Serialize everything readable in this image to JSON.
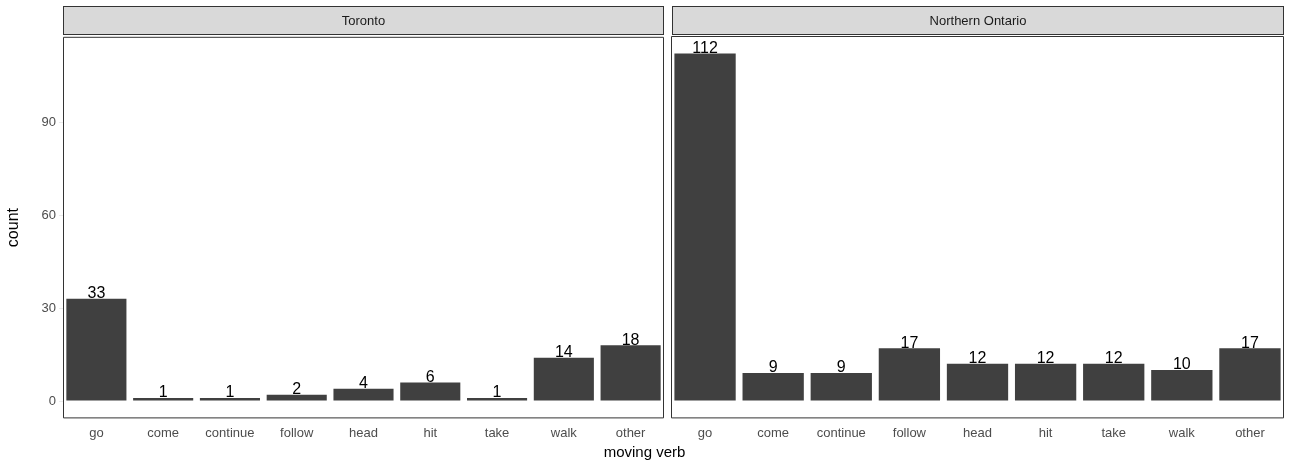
{
  "chart_data": [
    {
      "type": "bar",
      "title": "Toronto",
      "xlabel": "moving verb",
      "ylabel": "count",
      "categories": [
        "go",
        "come",
        "continue",
        "follow",
        "head",
        "hit",
        "take",
        "walk",
        "other"
      ],
      "values": [
        33,
        1,
        1,
        2,
        4,
        6,
        1,
        14,
        18
      ],
      "color": "#404040",
      "ylim": [
        -5.6,
        117.6
      ],
      "yticks": [
        0,
        30,
        60,
        90
      ],
      "grid": false,
      "legend": false,
      "data_labels": true
    },
    {
      "type": "bar",
      "title": "Northern Ontario",
      "categories": [
        "go",
        "come",
        "continue",
        "follow",
        "head",
        "hit",
        "take",
        "walk",
        "other"
      ],
      "values": [
        112,
        9,
        9,
        17,
        12,
        12,
        12,
        10,
        17
      ],
      "color": "#404040",
      "ylim": [
        -5.6,
        117.6
      ],
      "yticks": [
        0,
        30,
        60,
        90
      ],
      "grid": false,
      "legend": false,
      "data_labels": true,
      "tick_labels": "x"
    }
  ]
}
